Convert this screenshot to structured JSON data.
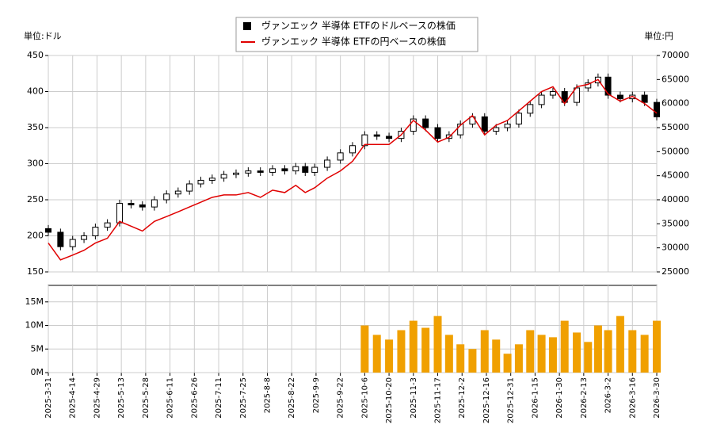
{
  "chart_data": [
    {
      "type": "candlestick",
      "ylabel": "単位:ドル",
      "y2label": "単位:円",
      "grid": true,
      "legend": "top",
      "x": [
        "2025-03-31",
        "2025-04-07",
        "2025-04-14",
        "2025-04-21",
        "2025-04-28",
        "2025-05-05",
        "2025-05-12",
        "2025-05-19",
        "2025-05-26",
        "2025-06-02",
        "2025-06-09",
        "2025-06-16",
        "2025-06-23",
        "2025-06-30",
        "2025-07-07",
        "2025-07-14",
        "2025-07-21",
        "2025-07-28",
        "2025-08-04",
        "2025-08-11",
        "2025-08-18",
        "2025-08-25",
        "2025-09-01",
        "2025-09-08",
        "2025-09-15",
        "2025-09-22",
        "2025-09-29",
        "2025-10-06",
        "2025-10-13",
        "2025-10-20",
        "2025-10-27",
        "2025-11-03",
        "2025-11-10",
        "2025-11-17",
        "2025-11-24",
        "2025-12-01",
        "2025-12-08",
        "2025-12-15",
        "2025-12-22",
        "2025-12-29",
        "2026-01-05",
        "2026-01-12",
        "2026-01-19",
        "2026-01-26",
        "2026-02-02",
        "2026-02-09",
        "2026-02-16",
        "2026-02-23",
        "2026-03-02",
        "2026-03-09",
        "2026-03-16",
        "2026-03-23",
        "2026-03-30"
      ],
      "series": [
        {
          "name": "ヴァンエック 半導体 ETFのドルベースの株価",
          "color": "#000000",
          "open": [
            210,
            205,
            185,
            195,
            200,
            212,
            218,
            245,
            243,
            240,
            250,
            258,
            262,
            272,
            277,
            280,
            285,
            287,
            290,
            288,
            293,
            290,
            296,
            288,
            295,
            305,
            315,
            325,
            340,
            338,
            335,
            345,
            362,
            350,
            335,
            340,
            355,
            365,
            345,
            350,
            355,
            370,
            382,
            395,
            400,
            385,
            405,
            412,
            420,
            395,
            390,
            395,
            385
          ],
          "high": [
            215,
            210,
            200,
            205,
            217,
            223,
            250,
            250,
            248,
            255,
            263,
            267,
            277,
            282,
            285,
            290,
            292,
            295,
            295,
            298,
            298,
            301,
            301,
            300,
            310,
            320,
            330,
            345,
            345,
            343,
            350,
            367,
            367,
            355,
            345,
            360,
            370,
            370,
            355,
            360,
            375,
            387,
            400,
            405,
            405,
            410,
            417,
            425,
            425,
            400,
            400,
            400,
            390
          ],
          "low": [
            200,
            180,
            180,
            190,
            195,
            207,
            213,
            238,
            235,
            235,
            245,
            253,
            257,
            267,
            272,
            275,
            280,
            282,
            283,
            283,
            285,
            285,
            283,
            283,
            290,
            300,
            310,
            320,
            333,
            330,
            330,
            340,
            345,
            330,
            330,
            335,
            350,
            340,
            340,
            345,
            350,
            365,
            377,
            390,
            380,
            380,
            400,
            407,
            390,
            385,
            385,
            380,
            360
          ],
          "close": [
            205,
            185,
            195,
            200,
            212,
            218,
            245,
            243,
            240,
            250,
            258,
            262,
            272,
            277,
            280,
            285,
            287,
            290,
            288,
            293,
            290,
            296,
            288,
            295,
            305,
            315,
            325,
            340,
            338,
            335,
            345,
            362,
            350,
            335,
            340,
            355,
            365,
            345,
            350,
            355,
            370,
            382,
            395,
            400,
            385,
            405,
            412,
            420,
            395,
            390,
            395,
            385,
            365
          ]
        },
        {
          "name": "ヴァンエック 半導体 ETFの円ベースの株価",
          "color": "#e00000",
          "axis": "y2",
          "values": [
            31000,
            27500,
            28500,
            29500,
            31000,
            32000,
            35500,
            34500,
            33500,
            35500,
            36500,
            37500,
            38500,
            39500,
            40500,
            41000,
            41000,
            41500,
            40500,
            42000,
            41500,
            43000,
            41500,
            42500,
            44500,
            46000,
            48000,
            51500,
            51500,
            51500,
            53500,
            56500,
            54500,
            52000,
            53000,
            55500,
            57500,
            53500,
            55500,
            56500,
            58500,
            60500,
            62500,
            63500,
            60000,
            63500,
            64000,
            65000,
            62000,
            60500,
            61500,
            60000,
            58000
          ]
        }
      ],
      "ylim": [
        150,
        450
      ],
      "yticks": [
        150,
        200,
        250,
        300,
        350,
        400,
        450
      ],
      "y2lim": [
        25000,
        70000
      ],
      "y2ticks": [
        25000,
        30000,
        35000,
        40000,
        45000,
        50000,
        55000,
        60000,
        65000,
        70000
      ]
    },
    {
      "type": "bar",
      "color": "#f0a000",
      "grid": true,
      "values": [
        null,
        null,
        null,
        null,
        null,
        null,
        null,
        null,
        null,
        null,
        null,
        null,
        null,
        null,
        null,
        null,
        null,
        null,
        null,
        null,
        null,
        null,
        null,
        null,
        null,
        null,
        null,
        10000000,
        8000000,
        7000000,
        9000000,
        11000000,
        9500000,
        12000000,
        8000000,
        6000000,
        5000000,
        9000000,
        7000000,
        4000000,
        6000000,
        9000000,
        8000000,
        7500000,
        11000000,
        8500000,
        6500000,
        10000000,
        9000000,
        12000000,
        9000000,
        8000000,
        11000000
      ],
      "ylim": [
        0,
        18500000
      ],
      "yticks": [
        {
          "value": 0,
          "label": "0M"
        },
        {
          "value": 5000000,
          "label": "5M"
        },
        {
          "value": 10000000,
          "label": "10M"
        },
        {
          "value": 15000000,
          "label": "15M"
        }
      ],
      "xticks": [
        "2025-3-31",
        "2025-4-14",
        "2025-4-29",
        "2025-5-13",
        "2025-5-28",
        "2025-6-11",
        "2025-6-26",
        "2025-7-11",
        "2025-7-25",
        "2025-8-8",
        "2025-8-22",
        "2025-9-9",
        "2025-9-22",
        "2025-10-6",
        "2025-10-20",
        "2025-11-3",
        "2025-11-17",
        "2025-12-2",
        "2025-12-16",
        "2025-12-31",
        "2026-1-15",
        "2026-1-30",
        "2026-2-13",
        "2026-3-2",
        "2026-3-16",
        "2026-3-30"
      ]
    }
  ]
}
